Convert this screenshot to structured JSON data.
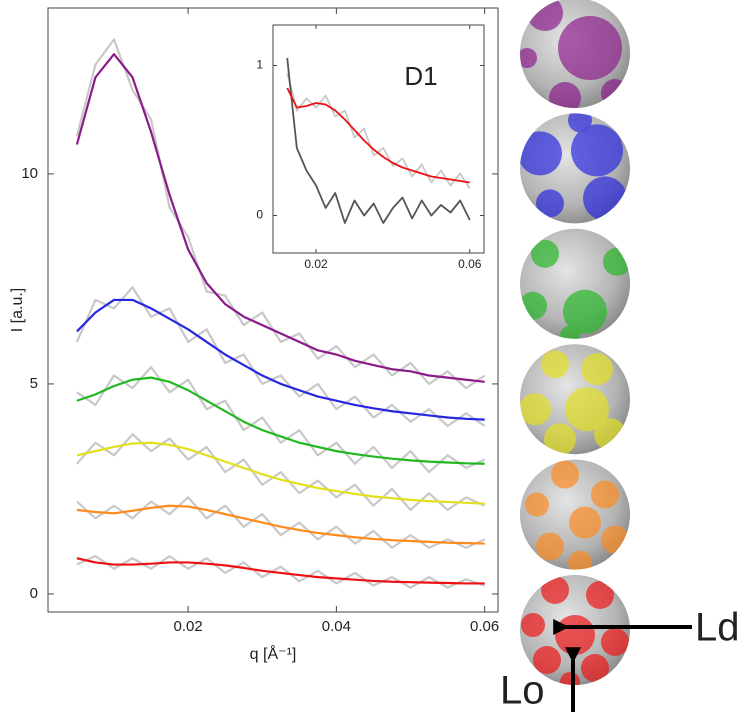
{
  "chart_data": [
    {
      "type": "line",
      "xlabel": "I [a.u.]",
      "x_label": "q [Å⁻¹]",
      "x": [
        0.005,
        0.0075,
        0.01,
        0.0125,
        0.015,
        0.0175,
        0.02,
        0.0225,
        0.025,
        0.0275,
        0.03,
        0.0325,
        0.035,
        0.0375,
        0.04,
        0.0425,
        0.045,
        0.0475,
        0.05,
        0.0525,
        0.055,
        0.0575,
        0.06
      ],
      "xlim": [
        0.0011,
        0.0618
      ],
      "xticks": [
        0.02,
        0.04,
        0.06
      ],
      "ylim": [
        -0.43,
        13.95
      ],
      "yticks": [
        0,
        5,
        10
      ],
      "series": [
        {
          "color": "#c8c8c8",
          "values": [
            10.9,
            12.6,
            13.2,
            12.0,
            11.3,
            9.2,
            8.5,
            7.2,
            7.1,
            6.4,
            6.7,
            6.0,
            6.2,
            5.6,
            5.9,
            5.4,
            5.7,
            5.2,
            5.5,
            5.0,
            5.3,
            4.9,
            5.2
          ]
        },
        {
          "color": "#c8c8c8",
          "values": [
            6.0,
            7.0,
            6.8,
            7.3,
            6.6,
            6.8,
            6.0,
            6.3,
            5.5,
            5.7,
            5.0,
            5.2,
            4.7,
            5.0,
            4.4,
            4.7,
            4.2,
            4.5,
            4.1,
            4.4,
            4.0,
            4.3,
            4.0
          ]
        },
        {
          "color": "#c8c8c8",
          "values": [
            4.8,
            4.5,
            5.2,
            4.9,
            5.4,
            4.8,
            5.1,
            4.4,
            4.6,
            3.9,
            4.2,
            3.6,
            3.9,
            3.3,
            3.6,
            3.1,
            3.5,
            3.0,
            3.4,
            2.9,
            3.3,
            3.0,
            3.2
          ]
        },
        {
          "color": "#c8c8c8",
          "values": [
            3.1,
            3.6,
            3.3,
            3.8,
            3.4,
            3.7,
            3.2,
            3.5,
            2.9,
            3.2,
            2.6,
            2.9,
            2.4,
            2.7,
            2.3,
            2.6,
            2.1,
            2.5,
            2.0,
            2.4,
            2.0,
            2.3,
            2.1
          ]
        },
        {
          "color": "#c8c8c8",
          "values": [
            2.2,
            1.8,
            2.1,
            1.8,
            2.2,
            1.9,
            2.3,
            1.8,
            2.1,
            1.6,
            1.9,
            1.4,
            1.7,
            1.3,
            1.6,
            1.2,
            1.5,
            1.1,
            1.4,
            1.1,
            1.3,
            1.1,
            1.3
          ]
        },
        {
          "color": "#c8c8c8",
          "values": [
            0.7,
            0.9,
            0.6,
            0.85,
            0.6,
            0.9,
            0.6,
            0.85,
            0.5,
            0.75,
            0.4,
            0.65,
            0.3,
            0.55,
            0.25,
            0.5,
            0.2,
            0.4,
            0.15,
            0.4,
            0.15,
            0.35,
            0.2
          ]
        },
        {
          "color": "#8b1a8b",
          "values": [
            10.7,
            12.3,
            12.85,
            12.3,
            11.0,
            9.5,
            8.2,
            7.4,
            6.9,
            6.6,
            6.4,
            6.2,
            6.0,
            5.8,
            5.7,
            5.55,
            5.45,
            5.35,
            5.3,
            5.2,
            5.15,
            5.1,
            5.05
          ]
        },
        {
          "color": "#2626e0",
          "values": [
            6.25,
            6.7,
            7.0,
            7.0,
            6.8,
            6.55,
            6.3,
            6.0,
            5.7,
            5.45,
            5.2,
            5.0,
            4.85,
            4.7,
            4.6,
            4.5,
            4.42,
            4.35,
            4.3,
            4.25,
            4.2,
            4.17,
            4.15
          ]
        },
        {
          "color": "#22b822",
          "values": [
            4.6,
            4.75,
            4.95,
            5.1,
            5.15,
            5.05,
            4.85,
            4.6,
            4.35,
            4.1,
            3.9,
            3.75,
            3.6,
            3.5,
            3.4,
            3.33,
            3.27,
            3.22,
            3.18,
            3.15,
            3.13,
            3.11,
            3.1
          ]
        },
        {
          "color": "#e2e01c",
          "values": [
            3.3,
            3.4,
            3.5,
            3.58,
            3.6,
            3.55,
            3.45,
            3.3,
            3.15,
            3.0,
            2.85,
            2.72,
            2.62,
            2.52,
            2.45,
            2.38,
            2.32,
            2.28,
            2.24,
            2.21,
            2.19,
            2.17,
            2.15
          ]
        },
        {
          "color": "#ff8a1c",
          "values": [
            2.0,
            1.95,
            1.92,
            1.98,
            2.05,
            2.1,
            2.08,
            2.0,
            1.9,
            1.8,
            1.7,
            1.6,
            1.52,
            1.45,
            1.4,
            1.35,
            1.31,
            1.28,
            1.26,
            1.24,
            1.22,
            1.21,
            1.2
          ]
        },
        {
          "color": "#ee1111",
          "values": [
            0.85,
            0.75,
            0.7,
            0.7,
            0.72,
            0.75,
            0.75,
            0.72,
            0.68,
            0.62,
            0.55,
            0.5,
            0.45,
            0.4,
            0.37,
            0.34,
            0.31,
            0.29,
            0.28,
            0.27,
            0.26,
            0.25,
            0.25
          ]
        }
      ],
      "annotations": [
        "Ld",
        "Lo"
      ]
    },
    {
      "type": "line",
      "annotation": "D1",
      "x": [
        0.0125,
        0.015,
        0.0175,
        0.02,
        0.0225,
        0.025,
        0.0275,
        0.03,
        0.0325,
        0.035,
        0.0375,
        0.04,
        0.0425,
        0.045,
        0.0475,
        0.05,
        0.0525,
        0.055,
        0.0575,
        0.06
      ],
      "xlim": [
        0.0088,
        0.0637
      ],
      "xticks": [
        0.02,
        0.06
      ],
      "ylim": [
        -0.25,
        1.27
      ],
      "yticks": [
        0,
        1
      ],
      "series": [
        {
          "color": "#c8c8c8",
          "values": [
            0.95,
            0.7,
            0.78,
            0.72,
            0.8,
            0.66,
            0.7,
            0.52,
            0.58,
            0.4,
            0.45,
            0.33,
            0.38,
            0.26,
            0.34,
            0.22,
            0.3,
            0.2,
            0.28,
            0.18
          ]
        },
        {
          "color": "#555555",
          "values": [
            1.05,
            0.45,
            0.3,
            0.2,
            0.05,
            0.15,
            -0.05,
            0.1,
            0.0,
            0.08,
            -0.05,
            0.05,
            0.12,
            -0.02,
            0.1,
            0.0,
            0.07,
            0.02,
            0.1,
            -0.03
          ]
        },
        {
          "color": "#ee1111",
          "values": [
            0.85,
            0.72,
            0.73,
            0.75,
            0.74,
            0.7,
            0.64,
            0.57,
            0.5,
            0.44,
            0.39,
            0.35,
            0.32,
            0.3,
            0.28,
            0.26,
            0.25,
            0.24,
            0.23,
            0.22
          ]
        }
      ]
    }
  ]
}
